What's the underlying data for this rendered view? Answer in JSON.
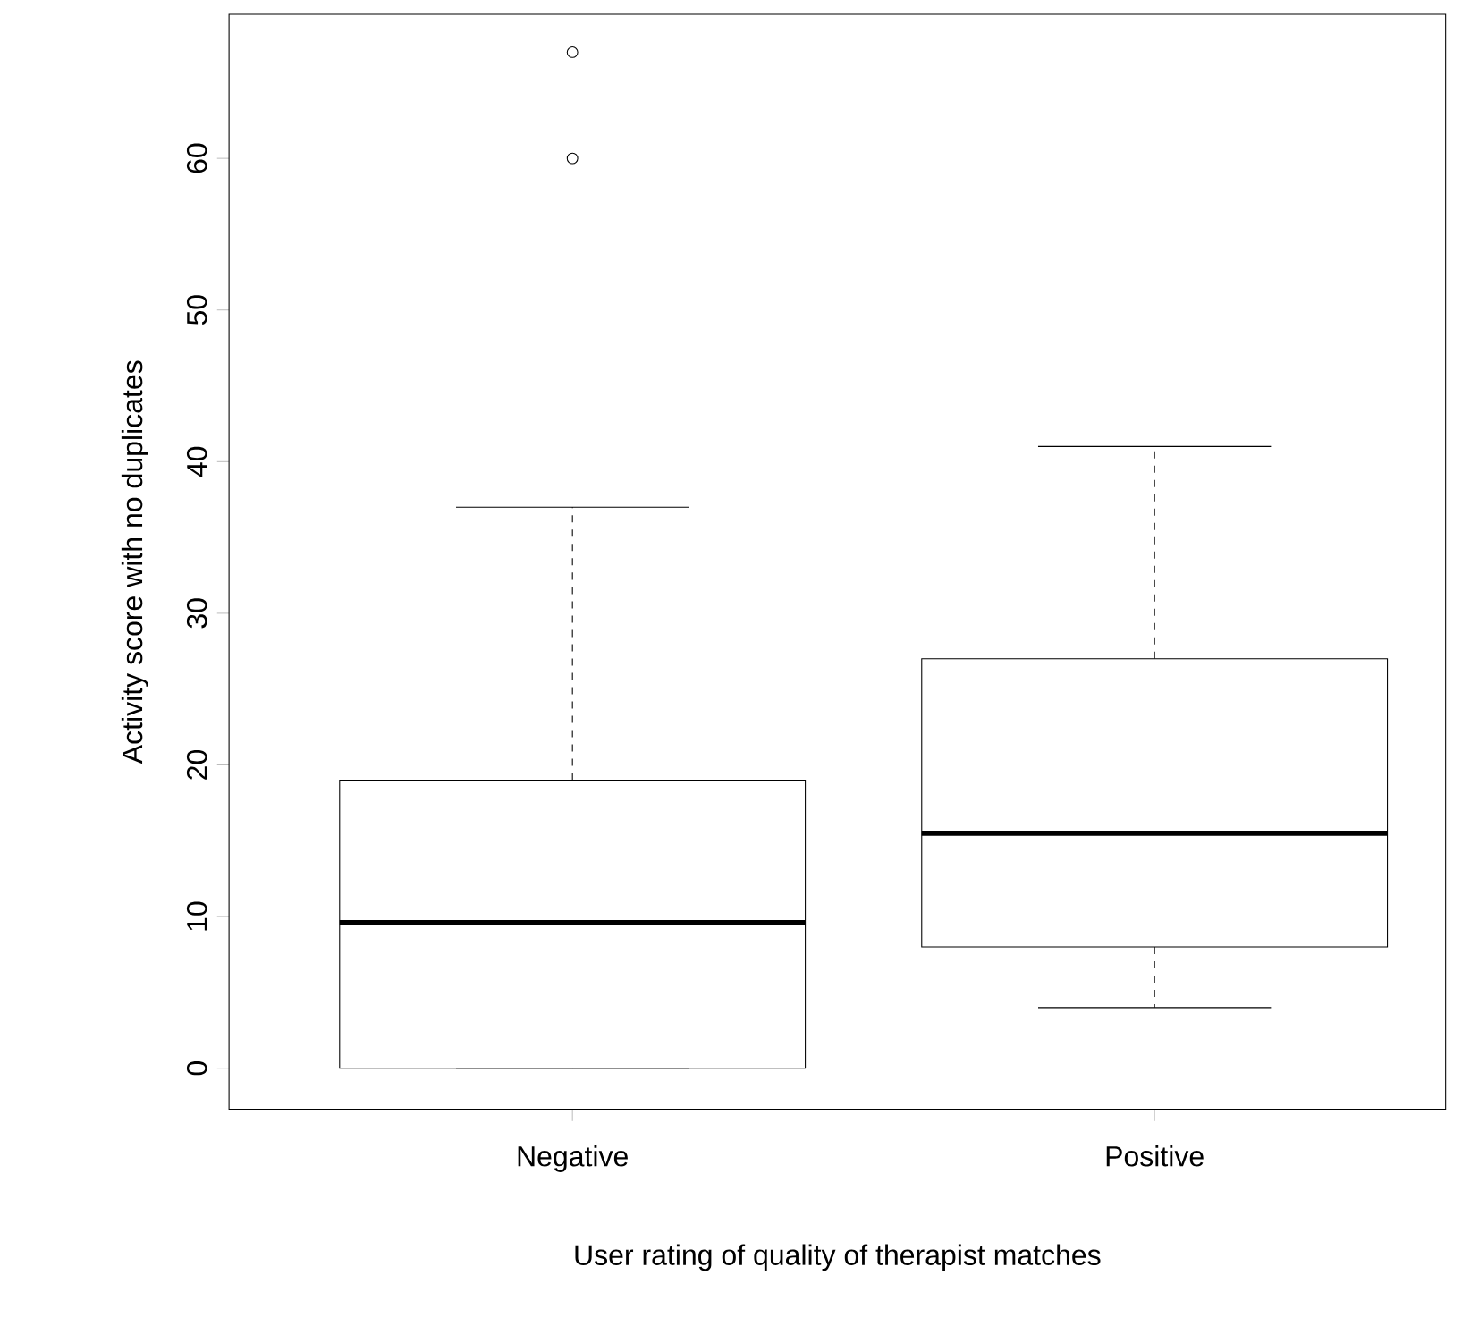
{
  "chart_data": {
    "type": "box",
    "xlabel": "User rating of quality of therapist matches",
    "ylabel": "Activity score with no duplicates",
    "categories": [
      "Negative",
      "Positive"
    ],
    "boxes": [
      {
        "low": 0,
        "q1": 0,
        "median": 9.6,
        "q3": 19,
        "high": 37,
        "outliers": [
          60,
          67
        ]
      },
      {
        "low": 4,
        "q1": 8,
        "median": 15.5,
        "q3": 27,
        "high": 41
      }
    ],
    "ylim": [
      -2.7,
      69.5
    ],
    "yticks": [
      0,
      10,
      20,
      30,
      40,
      50,
      60
    ]
  }
}
